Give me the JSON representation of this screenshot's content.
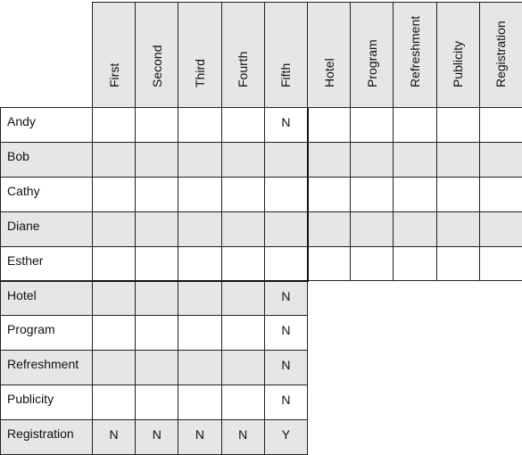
{
  "columns": [
    "First",
    "Second",
    "Third",
    "Fourth",
    "Fifth",
    "Hotel",
    "Program",
    "Refreshment",
    "Publicity",
    "Registration"
  ],
  "rows": [
    "Andy",
    "Bob",
    "Cathy",
    "Diane",
    "Esther",
    "Hotel",
    "Program",
    "Refreshment",
    "Publicity",
    "Registration"
  ],
  "marks": [
    {
      "row": 0,
      "col": 4,
      "v": "N"
    },
    {
      "row": 5,
      "col": 4,
      "v": "N"
    },
    {
      "row": 6,
      "col": 4,
      "v": "N"
    },
    {
      "row": 7,
      "col": 4,
      "v": "N"
    },
    {
      "row": 8,
      "col": 4,
      "v": "N"
    },
    {
      "row": 9,
      "col": 0,
      "v": "N"
    },
    {
      "row": 9,
      "col": 1,
      "v": "N"
    },
    {
      "row": 9,
      "col": 2,
      "v": "N"
    },
    {
      "row": 9,
      "col": 3,
      "v": "N"
    },
    {
      "row": 9,
      "col": 4,
      "v": "Y"
    }
  ]
}
